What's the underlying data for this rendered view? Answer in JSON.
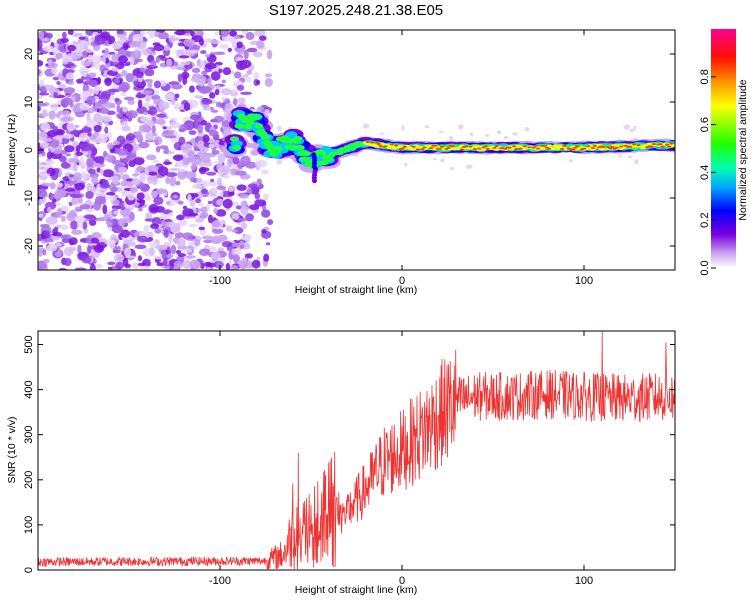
{
  "title": "S197.2025.248.21.38.E05",
  "chart_data": [
    {
      "type": "heatmap",
      "name": "spectrogram",
      "xlabel": "Height of straight line (km)",
      "ylabel": "Frequency (Hz)",
      "xlim": [
        -200,
        150
      ],
      "ylim": [
        -25,
        25
      ],
      "xticks": [
        -100,
        0,
        100
      ],
      "yticks": [
        -20,
        -10,
        0,
        10,
        20
      ],
      "colorbar": {
        "label": "Normalized spectral amplitude",
        "range": [
          0,
          1
        ],
        "ticks": [
          "0.0",
          "0.2",
          "0.4",
          "0.6",
          "0.8"
        ],
        "colors": [
          "#ffffff",
          "#c9a6f0",
          "#7a00e0",
          "#0000ff",
          "#00c8ff",
          "#00ff80",
          "#40ff00",
          "#ffff00",
          "#ff8000",
          "#ff0000",
          "#ff0080"
        ]
      },
      "signal_path": {
        "description_points": [
          {
            "x": -90,
            "y": 6.5
          },
          {
            "x": -80,
            "y": 5.5
          },
          {
            "x": -72,
            "y": 0
          },
          {
            "x": -60,
            "y": 2
          },
          {
            "x": -50,
            "y": -2
          },
          {
            "x": -40,
            "y": -1
          },
          {
            "x": -20,
            "y": 1.5
          },
          {
            "x": 0,
            "y": 0.5
          },
          {
            "x": 50,
            "y": 0.5
          },
          {
            "x": 100,
            "y": 0.5
          },
          {
            "x": 150,
            "y": 1
          }
        ]
      }
    },
    {
      "type": "line",
      "name": "snr",
      "xlabel": "Height of straight line (km)",
      "ylabel": "SNR (10 * v/v)",
      "xlim": [
        -200,
        150
      ],
      "ylim": [
        0,
        530
      ],
      "xticks": [
        -100,
        0,
        100
      ],
      "yticks": [
        0,
        100,
        200,
        300,
        400,
        500
      ],
      "color": "#ee3333",
      "trend_points": [
        {
          "x": -200,
          "y": 18
        },
        {
          "x": -75,
          "y": 20
        },
        {
          "x": -65,
          "y": 35
        },
        {
          "x": -60,
          "y": 80
        },
        {
          "x": -55,
          "y": 60
        },
        {
          "x": -45,
          "y": 85
        },
        {
          "x": -40,
          "y": 100
        },
        {
          "x": -30,
          "y": 130
        },
        {
          "x": -20,
          "y": 180
        },
        {
          "x": -10,
          "y": 240
        },
        {
          "x": 0,
          "y": 265
        },
        {
          "x": 10,
          "y": 300
        },
        {
          "x": 20,
          "y": 340
        },
        {
          "x": 30,
          "y": 375
        },
        {
          "x": 40,
          "y": 385
        },
        {
          "x": 60,
          "y": 385
        },
        {
          "x": 80,
          "y": 390
        },
        {
          "x": 100,
          "y": 385
        },
        {
          "x": 120,
          "y": 380
        },
        {
          "x": 150,
          "y": 385
        }
      ],
      "peaks": [
        {
          "x": -57,
          "y": 260
        },
        {
          "x": -42,
          "y": 210
        },
        {
          "x": 110,
          "y": 530
        },
        {
          "x": 145,
          "y": 505
        }
      ]
    }
  ]
}
